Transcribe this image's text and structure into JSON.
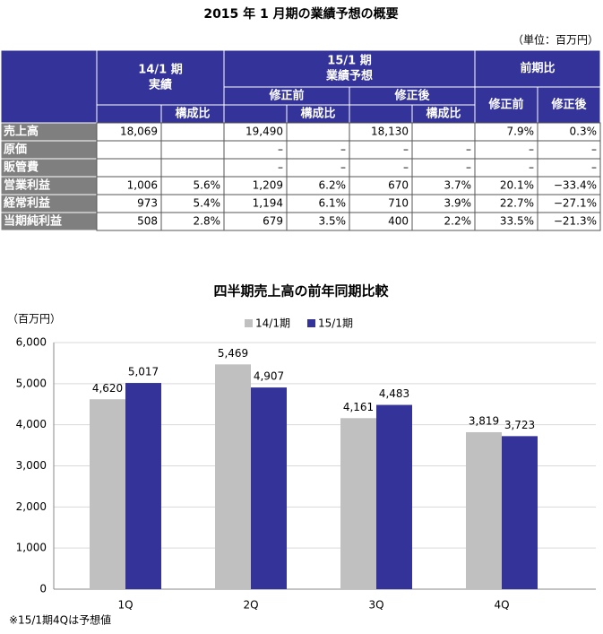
{
  "title": "2015 年 1 月期の業績予想の概要",
  "unit": "（単位：百万円）",
  "table": {
    "header": [
      [
        "14/1 期",
        "実績"
      ],
      [
        "構成比"
      ],
      [
        "15/1 期",
        "業績予想"
      ],
      [
        "修正前"
      ],
      [
        "構成比"
      ],
      [
        "修正後"
      ],
      [
        "構成比"
      ],
      [
        "前期比"
      ],
      [
        "修正前"
      ],
      [
        "修正後"
      ]
    ],
    "rows": [
      [
        "売上高",
        "18,069",
        null,
        "19,490",
        null,
        "18,130",
        null,
        "7.9%",
        "0.3%"
      ],
      [
        "原価",
        null,
        null,
        "–",
        "–",
        "–",
        "–",
        "–",
        "–"
      ],
      [
        "販管費",
        null,
        null,
        "–",
        "–",
        "–",
        "–",
        "–",
        "–"
      ],
      [
        "営業利益",
        "1,006",
        "5.6%",
        "1,209",
        "6.2%",
        "670",
        "3.7%",
        "20.1%",
        "−33.4%"
      ],
      [
        "経常利益",
        "973",
        "5.4%",
        "1,194",
        "6.1%",
        "710",
        "3.9%",
        "22.7%",
        "−27.1%"
      ],
      [
        "当期純利益",
        "508",
        "2.8%",
        "679",
        "3.5%",
        "400",
        "2.2%",
        "33.5%",
        "−21.3%"
      ]
    ]
  },
  "chart_data": {
    "type": "bar",
    "title": "四半期売上高の前年同期比較",
    "y_label": "（百万円）",
    "categories": [
      "1Q",
      "2Q",
      "3Q",
      "4Q"
    ],
    "series": [
      {
        "name": "14/1期",
        "color": "#c0c0c0",
        "values": [
          4620,
          5469,
          4161,
          3819
        ],
        "value_labels": [
          "4,620",
          "5,469",
          "4,161",
          "3,819"
        ]
      },
      {
        "name": "15/1期",
        "color": "#333399",
        "values": [
          5017,
          4907,
          4483,
          3723
        ],
        "value_labels": [
          "5,017",
          "4,907",
          "4,483",
          "3,723"
        ]
      }
    ],
    "ylim": [
      0,
      6000
    ],
    "yticks": [
      0,
      {
        "value": 1000,
        "label": "1,000"
      },
      {
        "value": 2000,
        "label": "2,000"
      },
      {
        "value": 3000,
        "label": "3,000"
      },
      {
        "value": 4000,
        "label": "4,000"
      },
      {
        "value": 5000,
        "label": "5,000"
      },
      {
        "value": 6000,
        "label": "6,000"
      }
    ],
    "grid": true,
    "note": "※15/1期4Qは予想値"
  }
}
